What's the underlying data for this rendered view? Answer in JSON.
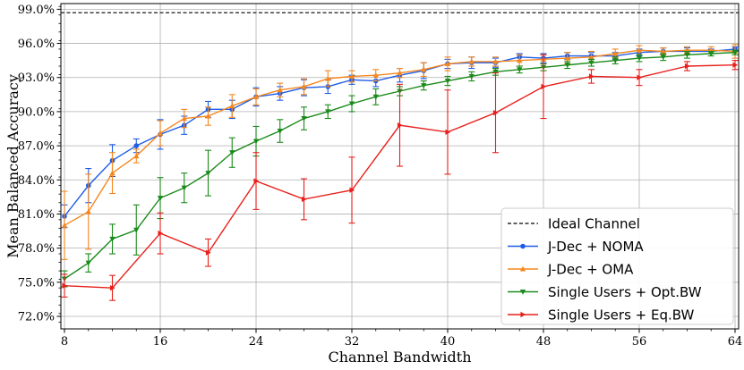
{
  "chart_data": {
    "type": "line",
    "xlabel": "Channel Bandwidth",
    "ylabel": "Mean Balanced Accuracy",
    "xlim": [
      7.7,
      64.3
    ],
    "ylim": [
      70.9,
      99.5
    ],
    "xticks": [
      8,
      16,
      24,
      32,
      40,
      48,
      56,
      64
    ],
    "xtick_labels": [
      "8",
      "16",
      "24",
      "32",
      "40",
      "48",
      "56",
      "64"
    ],
    "yticks": [
      72,
      75,
      78,
      81,
      84,
      87,
      90,
      93,
      96,
      99
    ],
    "ytick_labels": [
      "72.0%",
      "75.0%",
      "78.0%",
      "81.0%",
      "84.0%",
      "87.0%",
      "90.0%",
      "93.0%",
      "96.0%",
      "99.0%"
    ],
    "grid": true,
    "legend_position": "bottom-right",
    "reference_line": {
      "name": "Ideal Channel",
      "y": 98.7,
      "color": "#000000",
      "style": "dashed"
    },
    "series": [
      {
        "name": "J-Dec + NOMA",
        "color": "#1f5ce6",
        "marker": "circle",
        "x": [
          8,
          10,
          12,
          14,
          16,
          18,
          20,
          22,
          24,
          26,
          28,
          30,
          32,
          34,
          36,
          38,
          40,
          42,
          44,
          46,
          48,
          50,
          52,
          54,
          56,
          58,
          60,
          62,
          64
        ],
        "y": [
          80.8,
          83.5,
          85.7,
          87.0,
          88.0,
          88.8,
          90.2,
          90.2,
          91.3,
          91.6,
          92.1,
          92.2,
          92.8,
          92.7,
          93.2,
          93.6,
          94.2,
          94.3,
          94.3,
          94.8,
          94.7,
          94.9,
          94.9,
          94.9,
          95.2,
          95.3,
          95.3,
          95.3,
          95.5
        ],
        "err": [
          1.0,
          1.5,
          1.4,
          0.6,
          1.3,
          0.8,
          0.7,
          0.8,
          0.8,
          0.6,
          0.7,
          0.6,
          0.4,
          0.5,
          0.6,
          0.7,
          0.4,
          0.5,
          0.4,
          0.3,
          0.4,
          0.3,
          0.3,
          0.3,
          0.3,
          0.3,
          0.3,
          0.2,
          0.2
        ]
      },
      {
        "name": "J-Dec + OMA",
        "color": "#f5871f",
        "marker": "triangle-up",
        "x": [
          8,
          10,
          12,
          14,
          16,
          18,
          20,
          22,
          24,
          26,
          28,
          30,
          32,
          34,
          36,
          38,
          40,
          42,
          44,
          46,
          48,
          50,
          52,
          54,
          56,
          58,
          60,
          62,
          64
        ],
        "y": [
          80.0,
          81.2,
          84.6,
          86.1,
          88.1,
          89.4,
          89.6,
          90.5,
          91.3,
          91.9,
          92.2,
          92.9,
          93.1,
          93.2,
          93.4,
          93.7,
          94.2,
          94.4,
          94.4,
          94.5,
          94.6,
          94.7,
          94.8,
          95.1,
          95.4,
          95.3,
          95.4,
          95.4,
          95.3
        ],
        "err": [
          3.0,
          3.3,
          1.8,
          0.6,
          1.1,
          0.8,
          0.8,
          1.0,
          0.7,
          0.6,
          0.7,
          0.7,
          0.5,
          0.5,
          0.4,
          0.6,
          0.6,
          0.4,
          0.4,
          0.5,
          0.4,
          0.5,
          0.5,
          0.4,
          0.4,
          0.3,
          0.3,
          0.3,
          0.6
        ]
      },
      {
        "name": "Single Users + Opt.BW",
        "color": "#1a8a1a",
        "marker": "triangle-down",
        "x": [
          8,
          10,
          12,
          14,
          16,
          18,
          20,
          22,
          24,
          26,
          28,
          30,
          32,
          34,
          36,
          38,
          40,
          42,
          44,
          46,
          48,
          50,
          52,
          54,
          56,
          58,
          60,
          62,
          64
        ],
        "y": [
          75.3,
          76.7,
          78.8,
          79.6,
          82.4,
          83.3,
          84.6,
          86.4,
          87.4,
          88.3,
          89.4,
          90.0,
          90.7,
          91.3,
          91.8,
          92.3,
          92.7,
          93.1,
          93.5,
          93.7,
          93.9,
          94.1,
          94.3,
          94.5,
          94.7,
          94.8,
          95.0,
          95.1,
          95.2
        ],
        "err": [
          0.7,
          0.8,
          1.3,
          2.2,
          1.8,
          1.3,
          2.0,
          1.3,
          1.3,
          1.0,
          1.0,
          0.6,
          0.7,
          0.7,
          0.4,
          0.4,
          0.4,
          0.4,
          0.3,
          0.3,
          0.3,
          0.3,
          0.3,
          0.3,
          0.3,
          0.3,
          0.3,
          0.2,
          0.2
        ]
      },
      {
        "name": "Single Users + Eq.BW",
        "color": "#e8201c",
        "marker": "triangle-right",
        "x": [
          8,
          12,
          16,
          20,
          24,
          28,
          32,
          36,
          40,
          44,
          48,
          52,
          56,
          60,
          64
        ],
        "y": [
          74.7,
          74.5,
          79.3,
          77.6,
          83.9,
          82.3,
          83.1,
          88.8,
          88.2,
          89.9,
          92.2,
          93.1,
          93.0,
          94.0,
          94.1
        ],
        "err": [
          1.0,
          1.1,
          1.8,
          1.2,
          2.5,
          1.8,
          2.9,
          3.6,
          3.7,
          3.5,
          2.8,
          0.6,
          0.7,
          0.4,
          0.4
        ]
      }
    ]
  }
}
